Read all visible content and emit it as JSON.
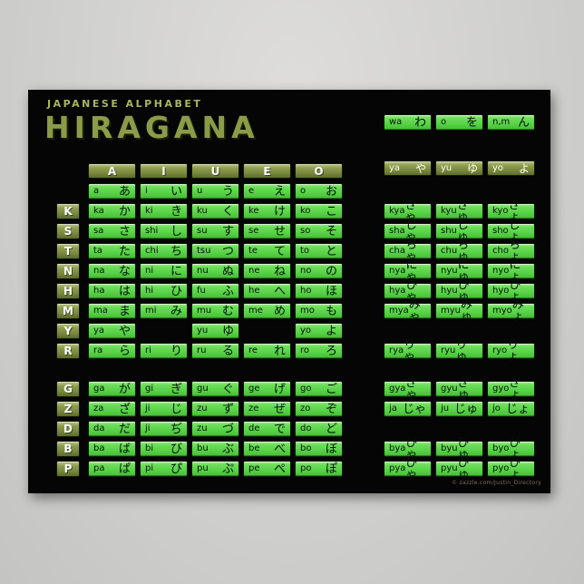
{
  "poster": {
    "subtitle": "JAPANESE ALPHABET",
    "title": "HIRAGANA",
    "credit": "© zazzle.com/Justin_Directory",
    "colors": {
      "cell_green": "#57d246",
      "header_olive": "#75853b",
      "title_olive": "#8c9b48",
      "poster_background": "#050505",
      "page_background": "#d0d0ce"
    },
    "main_table": {
      "col_headers": [
        "A",
        "I",
        "U",
        "E",
        "O"
      ],
      "rows": [
        {
          "label": "",
          "cells": [
            {
              "r": "a",
              "k": "あ"
            },
            {
              "r": "i",
              "k": "い"
            },
            {
              "r": "u",
              "k": "う"
            },
            {
              "r": "e",
              "k": "え"
            },
            {
              "r": "o",
              "k": "お"
            }
          ]
        },
        {
          "label": "K",
          "cells": [
            {
              "r": "ka",
              "k": "か"
            },
            {
              "r": "ki",
              "k": "き"
            },
            {
              "r": "ku",
              "k": "く"
            },
            {
              "r": "ke",
              "k": "け"
            },
            {
              "r": "ko",
              "k": "こ"
            }
          ]
        },
        {
          "label": "S",
          "cells": [
            {
              "r": "sa",
              "k": "さ"
            },
            {
              "r": "shi",
              "k": "し"
            },
            {
              "r": "su",
              "k": "す"
            },
            {
              "r": "se",
              "k": "せ"
            },
            {
              "r": "so",
              "k": "そ"
            }
          ]
        },
        {
          "label": "T",
          "cells": [
            {
              "r": "ta",
              "k": "た"
            },
            {
              "r": "chi",
              "k": "ち"
            },
            {
              "r": "tsu",
              "k": "つ"
            },
            {
              "r": "te",
              "k": "て"
            },
            {
              "r": "to",
              "k": "と"
            }
          ]
        },
        {
          "label": "N",
          "cells": [
            {
              "r": "na",
              "k": "な"
            },
            {
              "r": "ni",
              "k": "に"
            },
            {
              "r": "nu",
              "k": "ぬ"
            },
            {
              "r": "ne",
              "k": "ね"
            },
            {
              "r": "no",
              "k": "の"
            }
          ]
        },
        {
          "label": "H",
          "cells": [
            {
              "r": "ha",
              "k": "は"
            },
            {
              "r": "hi",
              "k": "ひ"
            },
            {
              "r": "fu",
              "k": "ふ"
            },
            {
              "r": "he",
              "k": "へ"
            },
            {
              "r": "ho",
              "k": "ほ"
            }
          ]
        },
        {
          "label": "M",
          "cells": [
            {
              "r": "ma",
              "k": "ま"
            },
            {
              "r": "mi",
              "k": "み"
            },
            {
              "r": "mu",
              "k": "む"
            },
            {
              "r": "me",
              "k": "め"
            },
            {
              "r": "mo",
              "k": "も"
            }
          ]
        },
        {
          "label": "Y",
          "cells": [
            {
              "r": "ya",
              "k": "や"
            },
            {
              "r": "",
              "k": "",
              "empty": true
            },
            {
              "r": "yu",
              "k": "ゆ"
            },
            {
              "r": "",
              "k": "",
              "empty": true
            },
            {
              "r": "yo",
              "k": "よ"
            }
          ]
        },
        {
          "label": "R",
          "cells": [
            {
              "r": "ra",
              "k": "ら"
            },
            {
              "r": "ri",
              "k": "り"
            },
            {
              "r": "ru",
              "k": "る"
            },
            {
              "r": "re",
              "k": "れ"
            },
            {
              "r": "ro",
              "k": "ろ"
            }
          ]
        }
      ],
      "voiced_rows": [
        {
          "label": "G",
          "cells": [
            {
              "r": "ga",
              "k": "が"
            },
            {
              "r": "gi",
              "k": "ぎ"
            },
            {
              "r": "gu",
              "k": "ぐ"
            },
            {
              "r": "ge",
              "k": "げ"
            },
            {
              "r": "go",
              "k": "ご"
            }
          ]
        },
        {
          "label": "Z",
          "cells": [
            {
              "r": "za",
              "k": "ざ"
            },
            {
              "r": "ji",
              "k": "じ"
            },
            {
              "r": "zu",
              "k": "ず"
            },
            {
              "r": "ze",
              "k": "ぜ"
            },
            {
              "r": "zo",
              "k": "ぞ"
            }
          ]
        },
        {
          "label": "D",
          "cells": [
            {
              "r": "da",
              "k": "だ"
            },
            {
              "r": "ji",
              "k": "ぢ"
            },
            {
              "r": "zu",
              "k": "づ"
            },
            {
              "r": "de",
              "k": "で"
            },
            {
              "r": "do",
              "k": "ど"
            }
          ]
        },
        {
          "label": "B",
          "cells": [
            {
              "r": "ba",
              "k": "ば"
            },
            {
              "r": "bi",
              "k": "び"
            },
            {
              "r": "bu",
              "k": "ぶ"
            },
            {
              "r": "be",
              "k": "べ"
            },
            {
              "r": "bo",
              "k": "ぼ"
            }
          ]
        },
        {
          "label": "P",
          "cells": [
            {
              "r": "pa",
              "k": "ぱ"
            },
            {
              "r": "pi",
              "k": "ぴ"
            },
            {
              "r": "pu",
              "k": "ぷ"
            },
            {
              "r": "pe",
              "k": "ぺ"
            },
            {
              "r": "po",
              "k": "ぽ"
            }
          ]
        }
      ]
    },
    "right_panel": {
      "extra_row": [
        {
          "r": "wa",
          "k": "わ"
        },
        {
          "r": "o",
          "k": "を"
        },
        {
          "r": "n,m",
          "k": "ん"
        }
      ],
      "y_row": [
        {
          "r": "ya",
          "k": "や"
        },
        {
          "r": "yu",
          "k": "ゆ"
        },
        {
          "r": "yo",
          "k": "よ"
        }
      ],
      "combo_rows_main": [
        [
          {
            "r": "kya",
            "k": "きゃ"
          },
          {
            "r": "kyu",
            "k": "きゅ"
          },
          {
            "r": "kyo",
            "k": "きょ"
          }
        ],
        [
          {
            "r": "sha",
            "k": "しゃ"
          },
          {
            "r": "shu",
            "k": "しゅ"
          },
          {
            "r": "sho",
            "k": "しょ"
          }
        ],
        [
          {
            "r": "cha",
            "k": "ちゃ"
          },
          {
            "r": "chu",
            "k": "ちゅ"
          },
          {
            "r": "cho",
            "k": "ちょ"
          }
        ],
        [
          {
            "r": "nya",
            "k": "にゃ"
          },
          {
            "r": "nyu",
            "k": "にゅ"
          },
          {
            "r": "nyo",
            "k": "にょ"
          }
        ],
        [
          {
            "r": "hya",
            "k": "ひゃ"
          },
          {
            "r": "hyu",
            "k": "ひゅ"
          },
          {
            "r": "hyo",
            "k": "ひょ"
          }
        ],
        [
          {
            "r": "mya",
            "k": "みゃ"
          },
          {
            "r": "myu",
            "k": "みゅ"
          },
          {
            "r": "myo",
            "k": "みょ"
          }
        ]
      ],
      "combo_rows_r": [
        [
          {
            "r": "rya",
            "k": "りゃ"
          },
          {
            "r": "ryu",
            "k": "りゅ"
          },
          {
            "r": "ryo",
            "k": "りょ"
          }
        ]
      ],
      "combo_rows_voiced": [
        [
          {
            "r": "gya",
            "k": "ぎゃ"
          },
          {
            "r": "gyu",
            "k": "ぎゅ"
          },
          {
            "r": "gyo",
            "k": "ぎょ"
          }
        ],
        [
          {
            "r": "ja",
            "k": "じゃ"
          },
          {
            "r": "ju",
            "k": "じゅ"
          },
          {
            "r": "jo",
            "k": "じょ"
          }
        ]
      ],
      "combo_rows_bp": [
        [
          {
            "r": "bya",
            "k": "びゃ"
          },
          {
            "r": "byu",
            "k": "びゅ"
          },
          {
            "r": "byo",
            "k": "びょ"
          }
        ],
        [
          {
            "r": "pya",
            "k": "ぴゃ"
          },
          {
            "r": "pyu",
            "k": "ぴゅ"
          },
          {
            "r": "pyo",
            "k": "ぴょ"
          }
        ]
      ]
    }
  }
}
